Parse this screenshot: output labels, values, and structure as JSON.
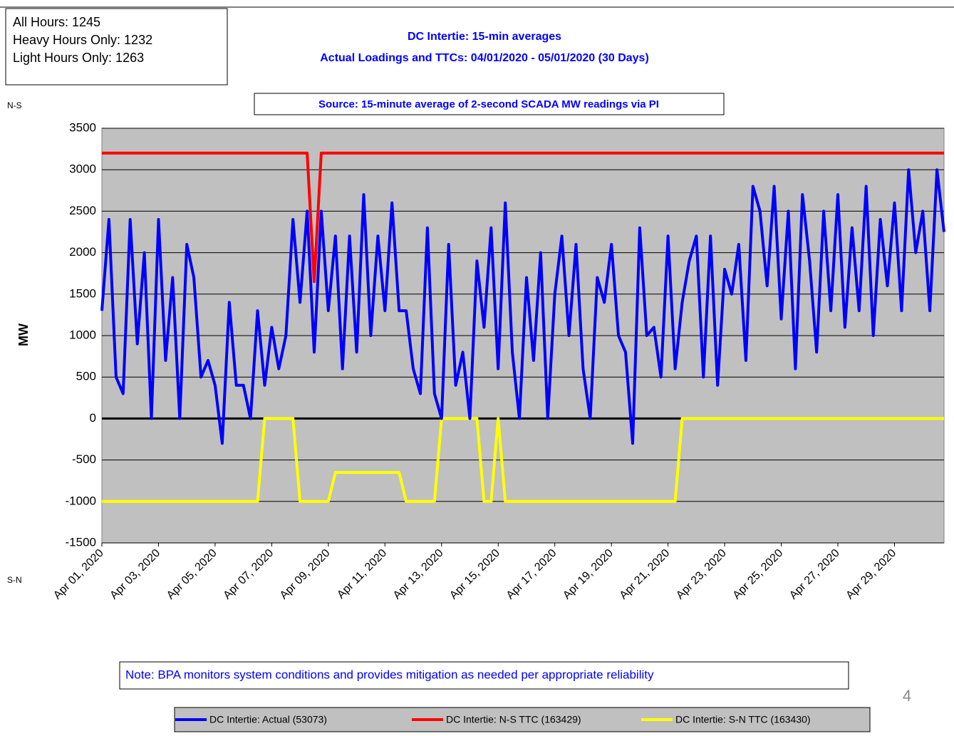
{
  "chart_data": {
    "type": "line",
    "stats": [
      "All Hours: 1245",
      "Heavy Hours Only: 1232",
      "Light Hours Only: 1263"
    ],
    "title": "DC Intertie: 15-min averages",
    "subtitle": "Actual Loadings and TTCs: 04/01/2020  - 05/01/2020 (30 Days)",
    "source": "Source: 15-minute average of 2-second SCADA MW readings via PI",
    "y_top_label": "N-S",
    "y_bottom_label": "S-N",
    "ylabel": "MW",
    "note": "Note: BPA monitors system conditions and provides mitigation as needed per appropriate reliability",
    "page_number": "4",
    "x": [
      "2020-04-01T00:00",
      "2020-04-01T06:00",
      "2020-04-01T12:00",
      "2020-04-01T18:00",
      "2020-04-02T00:00",
      "2020-04-02T06:00",
      "2020-04-02T12:00",
      "2020-04-02T18:00",
      "2020-04-03T00:00",
      "2020-04-03T06:00",
      "2020-04-03T12:00",
      "2020-04-03T18:00",
      "2020-04-04T00:00",
      "2020-04-04T06:00",
      "2020-04-04T12:00",
      "2020-04-04T18:00",
      "2020-04-05T00:00",
      "2020-04-05T06:00",
      "2020-04-05T12:00",
      "2020-04-05T18:00",
      "2020-04-06T00:00",
      "2020-04-06T06:00",
      "2020-04-06T12:00",
      "2020-04-06T18:00",
      "2020-04-07T00:00",
      "2020-04-07T06:00",
      "2020-04-07T12:00",
      "2020-04-07T18:00",
      "2020-04-08T00:00",
      "2020-04-08T06:00",
      "2020-04-08T12:00",
      "2020-04-08T18:00",
      "2020-04-09T00:00",
      "2020-04-09T06:00",
      "2020-04-09T12:00",
      "2020-04-09T18:00",
      "2020-04-10T00:00",
      "2020-04-10T06:00",
      "2020-04-10T12:00",
      "2020-04-10T18:00",
      "2020-04-11T00:00",
      "2020-04-11T06:00",
      "2020-04-11T12:00",
      "2020-04-11T18:00",
      "2020-04-12T00:00",
      "2020-04-12T06:00",
      "2020-04-12T12:00",
      "2020-04-12T18:00",
      "2020-04-13T00:00",
      "2020-04-13T06:00",
      "2020-04-13T12:00",
      "2020-04-13T18:00",
      "2020-04-14T00:00",
      "2020-04-14T06:00",
      "2020-04-14T12:00",
      "2020-04-14T18:00",
      "2020-04-15T00:00",
      "2020-04-15T06:00",
      "2020-04-15T12:00",
      "2020-04-15T18:00",
      "2020-04-16T00:00",
      "2020-04-16T06:00",
      "2020-04-16T12:00",
      "2020-04-16T18:00",
      "2020-04-17T00:00",
      "2020-04-17T06:00",
      "2020-04-17T12:00",
      "2020-04-17T18:00",
      "2020-04-18T00:00",
      "2020-04-18T06:00",
      "2020-04-18T12:00",
      "2020-04-18T18:00",
      "2020-04-19T00:00",
      "2020-04-19T06:00",
      "2020-04-19T12:00",
      "2020-04-19T18:00",
      "2020-04-20T00:00",
      "2020-04-20T06:00",
      "2020-04-20T12:00",
      "2020-04-20T18:00",
      "2020-04-21T00:00",
      "2020-04-21T06:00",
      "2020-04-21T12:00",
      "2020-04-21T18:00",
      "2020-04-22T00:00",
      "2020-04-22T06:00",
      "2020-04-22T12:00",
      "2020-04-22T18:00",
      "2020-04-23T00:00",
      "2020-04-23T06:00",
      "2020-04-23T12:00",
      "2020-04-23T18:00",
      "2020-04-24T00:00",
      "2020-04-24T06:00",
      "2020-04-24T12:00",
      "2020-04-24T18:00",
      "2020-04-25T00:00",
      "2020-04-25T06:00",
      "2020-04-25T12:00",
      "2020-04-25T18:00",
      "2020-04-26T00:00",
      "2020-04-26T06:00",
      "2020-04-26T12:00",
      "2020-04-26T18:00",
      "2020-04-27T00:00",
      "2020-04-27T06:00",
      "2020-04-27T12:00",
      "2020-04-27T18:00",
      "2020-04-28T00:00",
      "2020-04-28T06:00",
      "2020-04-28T12:00",
      "2020-04-28T18:00",
      "2020-04-29T00:00",
      "2020-04-29T06:00",
      "2020-04-29T12:00",
      "2020-04-29T18:00",
      "2020-04-30T00:00",
      "2020-04-30T06:00",
      "2020-04-30T12:00",
      "2020-04-30T18:00"
    ],
    "series": [
      {
        "name": "DC Intertie: Actual (53073)",
        "color": "#0000ff",
        "values": [
          1300,
          2400,
          500,
          300,
          2400,
          900,
          2000,
          0,
          2400,
          700,
          1700,
          0,
          2100,
          1700,
          500,
          700,
          400,
          -300,
          1400,
          400,
          400,
          0,
          1300,
          400,
          1100,
          600,
          1000,
          2400,
          1400,
          2500,
          800,
          2500,
          1300,
          2200,
          600,
          2200,
          800,
          2700,
          1000,
          2200,
          1300,
          2600,
          1300,
          1300,
          600,
          300,
          2300,
          300,
          0,
          2100,
          400,
          800,
          0,
          1900,
          1100,
          2300,
          600,
          2600,
          800,
          0,
          1700,
          700,
          2000,
          0,
          1500,
          2200,
          1000,
          2100,
          600,
          0,
          1700,
          1400,
          2100,
          1000,
          800,
          -300,
          2300,
          1000,
          1100,
          500,
          2200,
          600,
          1400,
          1900,
          2200,
          500,
          2200,
          400,
          1800,
          1500,
          2100,
          700,
          2800,
          2500,
          1600,
          2800,
          1200,
          2500,
          600,
          2700,
          1900,
          800,
          2500,
          1300,
          2700,
          1100,
          2300,
          1300,
          2800,
          1000,
          2400,
          1600,
          2600,
          1300,
          3000,
          2000,
          2500,
          1300,
          3000,
          2250
        ]
      },
      {
        "name": "DC Intertie: N-S TTC (163429)",
        "color": "#ff0000",
        "values": [
          3200,
          3200,
          3200,
          3200,
          3200,
          3200,
          3200,
          3200,
          3200,
          3200,
          3200,
          3200,
          3200,
          3200,
          3200,
          3200,
          3200,
          3200,
          3200,
          3200,
          3200,
          3200,
          3200,
          3200,
          3200,
          3200,
          3200,
          3200,
          3200,
          3200,
          1650,
          3200,
          3200,
          3200,
          3200,
          3200,
          3200,
          3200,
          3200,
          3200,
          3200,
          3200,
          3200,
          3200,
          3200,
          3200,
          3200,
          3200,
          3200,
          3200,
          3200,
          3200,
          3200,
          3200,
          3200,
          3200,
          3200,
          3200,
          3200,
          3200,
          3200,
          3200,
          3200,
          3200,
          3200,
          3200,
          3200,
          3200,
          3200,
          3200,
          3200,
          3200,
          3200,
          3200,
          3200,
          3200,
          3200,
          3200,
          3200,
          3200,
          3200,
          3200,
          3200,
          3200,
          3200,
          3200,
          3200,
          3200,
          3200,
          3200,
          3200,
          3200,
          3200,
          3200,
          3200,
          3200,
          3200,
          3200,
          3200,
          3200,
          3200,
          3200,
          3200,
          3200,
          3200,
          3200,
          3200,
          3200,
          3200,
          3200,
          3200,
          3200,
          3200,
          3200,
          3200,
          3200,
          3200,
          3200,
          3200,
          3200
        ]
      },
      {
        "name": "DC Intertie: S-N TTC (163430)",
        "color": "#ffff00",
        "values": [
          -1000,
          -1000,
          -1000,
          -1000,
          -1000,
          -1000,
          -1000,
          -1000,
          -1000,
          -1000,
          -1000,
          -1000,
          -1000,
          -1000,
          -1000,
          -1000,
          -1000,
          -1000,
          -1000,
          -1000,
          -1000,
          -1000,
          -1000,
          0,
          0,
          0,
          0,
          0,
          -1000,
          -1000,
          -1000,
          -1000,
          -1000,
          -650,
          -650,
          -650,
          -650,
          -650,
          -650,
          -650,
          -650,
          -650,
          -650,
          -1000,
          -1000,
          -1000,
          -1000,
          -1000,
          0,
          0,
          0,
          0,
          0,
          0,
          -1000,
          -1000,
          0,
          -1000,
          -1000,
          -1000,
          -1000,
          -1000,
          -1000,
          -1000,
          -1000,
          -1000,
          -1000,
          -1000,
          -1000,
          -1000,
          -1000,
          -1000,
          -1000,
          -1000,
          -1000,
          -1000,
          -1000,
          -1000,
          -1000,
          -1000,
          -1000,
          -1000,
          0,
          0,
          0,
          0,
          0,
          0,
          0,
          0,
          0,
          0,
          0,
          0,
          0,
          0,
          0,
          0,
          0,
          0,
          0,
          0,
          0,
          0,
          0,
          0,
          0,
          0,
          0,
          0,
          0,
          0,
          0,
          0,
          0,
          0,
          0,
          0,
          0,
          0
        ]
      }
    ],
    "xlim": [
      "2020-04-01T00:00",
      "2020-04-30T18:00"
    ],
    "xticks": [
      {
        "value": "2020-04-01",
        "label": "Apr 01, 2020"
      },
      {
        "value": "2020-04-03",
        "label": "Apr 03, 2020"
      },
      {
        "value": "2020-04-05",
        "label": "Apr 05, 2020"
      },
      {
        "value": "2020-04-07",
        "label": "Apr 07, 2020"
      },
      {
        "value": "2020-04-09",
        "label": "Apr 09, 2020"
      },
      {
        "value": "2020-04-11",
        "label": "Apr 11, 2020"
      },
      {
        "value": "2020-04-13",
        "label": "Apr 13, 2020"
      },
      {
        "value": "2020-04-15",
        "label": "Apr 15, 2020"
      },
      {
        "value": "2020-04-17",
        "label": "Apr 17, 2020"
      },
      {
        "value": "2020-04-19",
        "label": "Apr 19, 2020"
      },
      {
        "value": "2020-04-21",
        "label": "Apr 21, 2020"
      },
      {
        "value": "2020-04-23",
        "label": "Apr 23, 2020"
      },
      {
        "value": "2020-04-25",
        "label": "Apr 25, 2020"
      },
      {
        "value": "2020-04-27",
        "label": "Apr 27, 2020"
      },
      {
        "value": "2020-04-29",
        "label": "Apr 29, 2020"
      }
    ],
    "ylim": [
      -1500,
      3500
    ],
    "yticks": [
      -1500,
      -1000,
      -500,
      0,
      500,
      1000,
      1500,
      2000,
      2500,
      3000,
      3500
    ],
    "grid": true,
    "plot_background": "#c0c0c0",
    "legend": "bottom"
  }
}
